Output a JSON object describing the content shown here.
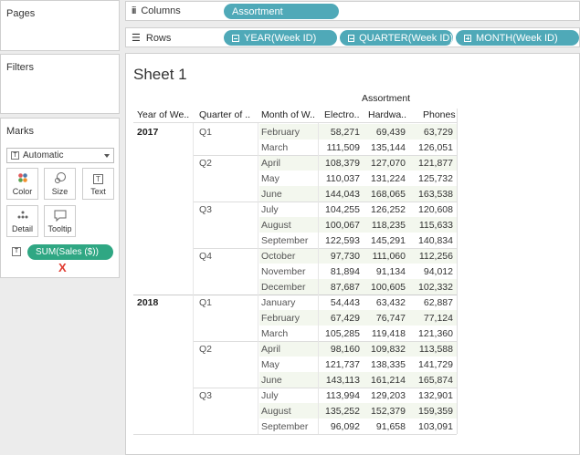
{
  "panels": {
    "pages_title": "Pages",
    "filters_title": "Filters",
    "marks_title": "Marks"
  },
  "shelves": {
    "columns_label": "Columns",
    "rows_label": "Rows",
    "column_pills": [
      "Assortment"
    ],
    "row_pills": [
      "YEAR(Week ID)",
      "QUARTER(Week ID)",
      "MONTH(Week ID)"
    ]
  },
  "marks": {
    "type": "Automatic",
    "tiles": [
      "Color",
      "Size",
      "Text",
      "Detail",
      "Tooltip"
    ],
    "measure_pill": "SUM(Sales ($))",
    "remove_mark": "X"
  },
  "sheet": {
    "title": "Sheet 1",
    "column_group": "Assortment",
    "headers": [
      "Year of We..",
      "Quarter of ..",
      "Month of W..",
      "Electro..",
      "Hardwa..",
      "Phones"
    ]
  },
  "table": [
    {
      "year": "2017",
      "quarter": "Q1",
      "month": "February",
      "v": [
        "58,271",
        "69,439",
        "63,729"
      ]
    },
    {
      "year": "",
      "quarter": "",
      "month": "March",
      "v": [
        "111,509",
        "135,144",
        "126,051"
      ]
    },
    {
      "year": "",
      "quarter": "Q2",
      "month": "April",
      "v": [
        "108,379",
        "127,070",
        "121,877"
      ]
    },
    {
      "year": "",
      "quarter": "",
      "month": "May",
      "v": [
        "110,037",
        "131,224",
        "125,732"
      ]
    },
    {
      "year": "",
      "quarter": "",
      "month": "June",
      "v": [
        "144,043",
        "168,065",
        "163,538"
      ]
    },
    {
      "year": "",
      "quarter": "Q3",
      "month": "July",
      "v": [
        "104,255",
        "126,252",
        "120,608"
      ]
    },
    {
      "year": "",
      "quarter": "",
      "month": "August",
      "v": [
        "100,067",
        "118,235",
        "115,633"
      ]
    },
    {
      "year": "",
      "quarter": "",
      "month": "September",
      "v": [
        "122,593",
        "145,291",
        "140,834"
      ]
    },
    {
      "year": "",
      "quarter": "Q4",
      "month": "October",
      "v": [
        "97,730",
        "111,060",
        "112,256"
      ]
    },
    {
      "year": "",
      "quarter": "",
      "month": "November",
      "v": [
        "81,894",
        "91,134",
        "94,012"
      ]
    },
    {
      "year": "",
      "quarter": "",
      "month": "December",
      "v": [
        "87,687",
        "100,605",
        "102,332"
      ]
    },
    {
      "year": "2018",
      "quarter": "Q1",
      "month": "January",
      "v": [
        "54,443",
        "63,432",
        "62,887"
      ]
    },
    {
      "year": "",
      "quarter": "",
      "month": "February",
      "v": [
        "67,429",
        "76,747",
        "77,124"
      ]
    },
    {
      "year": "",
      "quarter": "",
      "month": "March",
      "v": [
        "105,285",
        "119,418",
        "121,360"
      ]
    },
    {
      "year": "",
      "quarter": "Q2",
      "month": "April",
      "v": [
        "98,160",
        "109,832",
        "113,588"
      ]
    },
    {
      "year": "",
      "quarter": "",
      "month": "May",
      "v": [
        "121,737",
        "138,335",
        "141,729"
      ]
    },
    {
      "year": "",
      "quarter": "",
      "month": "June",
      "v": [
        "143,113",
        "161,214",
        "165,874"
      ]
    },
    {
      "year": "",
      "quarter": "Q3",
      "month": "July",
      "v": [
        "113,994",
        "129,203",
        "132,901"
      ]
    },
    {
      "year": "",
      "quarter": "",
      "month": "August",
      "v": [
        "135,252",
        "152,379",
        "159,359"
      ]
    },
    {
      "year": "",
      "quarter": "",
      "month": "September",
      "v": [
        "96,092",
        "91,658",
        "103,091"
      ]
    }
  ],
  "colors": {
    "pill_blue": "#4fa9b8",
    "pill_green": "#2fa783",
    "row_band": "#f3f7ee",
    "remove_red": "#e03c31"
  }
}
